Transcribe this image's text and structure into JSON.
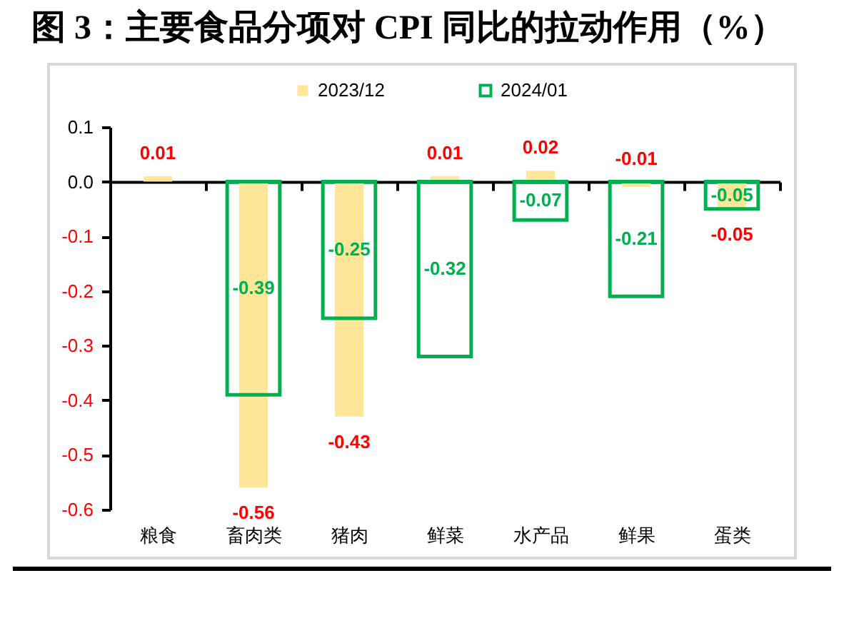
{
  "chart_data": {
    "type": "bar",
    "title": "图 3：主要食品分项对 CPI 同比的拉动作用（%）",
    "categories": [
      "粮食",
      "畜肉类",
      "猪肉",
      "鲜菜",
      "水产品",
      "鲜果",
      "蛋类"
    ],
    "series": [
      {
        "name": "2023/12",
        "color": "#ffe699",
        "values": [
          0.01,
          -0.56,
          -0.43,
          0.01,
          0.02,
          -0.01,
          -0.05
        ]
      },
      {
        "name": "2024/01",
        "color": "#00b050",
        "values": [
          null,
          -0.39,
          -0.25,
          -0.32,
          -0.07,
          -0.21,
          -0.05
        ]
      }
    ],
    "ylim": [
      -0.6,
      0.1
    ],
    "yticks": [
      -0.6,
      -0.5,
      -0.4,
      -0.3,
      -0.2,
      -0.1,
      {
        "value": 0,
        "label": "0.0"
      },
      0.1
    ],
    "data_labels": true,
    "legend": "top"
  }
}
